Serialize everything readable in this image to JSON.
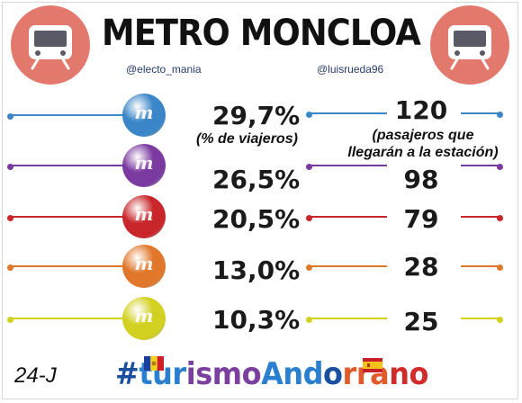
{
  "header": {
    "title": "METRO MONCLOA",
    "handle_left": "@electo_mania",
    "handle_right": "@luisrueda96"
  },
  "icons": {
    "badge_icon": "train-icon",
    "badge_color": "#e3786c"
  },
  "labels": {
    "pct_note": "(% de viajeros)",
    "count_note_line1": "(pasajeros que",
    "count_note_line2": "llegarán a la estación)"
  },
  "footer": {
    "date": "24-J",
    "hashtag": [
      {
        "text": "#",
        "color": "#1a4fa0"
      },
      {
        "text": "tur",
        "color": "#2a7fd0"
      },
      {
        "text": "ismo",
        "color": "#7b3fa0"
      },
      {
        "text": "And",
        "color": "#2a7fd0"
      },
      {
        "text": "o",
        "color": "#1a4fa0"
      },
      {
        "text": "rra",
        "color": "#e05a2a"
      },
      {
        "text": "no",
        "color": "#d12b2b"
      }
    ]
  },
  "chart_data": {
    "type": "table",
    "title": "METRO MONCLOA",
    "columns": [
      "% de viajeros",
      "pasajeros que llegarán a la estación"
    ],
    "rows": [
      {
        "party_color": "#3a86c8",
        "percent": "29,7%",
        "percent_value": 29.7,
        "passengers": "120",
        "passengers_value": 120
      },
      {
        "party_color": "#7a3aa0",
        "percent": "26,5%",
        "percent_value": 26.5,
        "passengers": "98",
        "passengers_value": 98
      },
      {
        "party_color": "#c8262a",
        "percent": "20,5%",
        "percent_value": 20.5,
        "passengers": "79",
        "passengers_value": 79
      },
      {
        "party_color": "#e0772a",
        "percent": "13,0%",
        "percent_value": 13.0,
        "passengers": "28",
        "passengers_value": 28
      },
      {
        "party_color": "#d2d020",
        "percent": "10,3%",
        "percent_value": 10.3,
        "passengers": "25",
        "passengers_value": 25
      }
    ]
  }
}
